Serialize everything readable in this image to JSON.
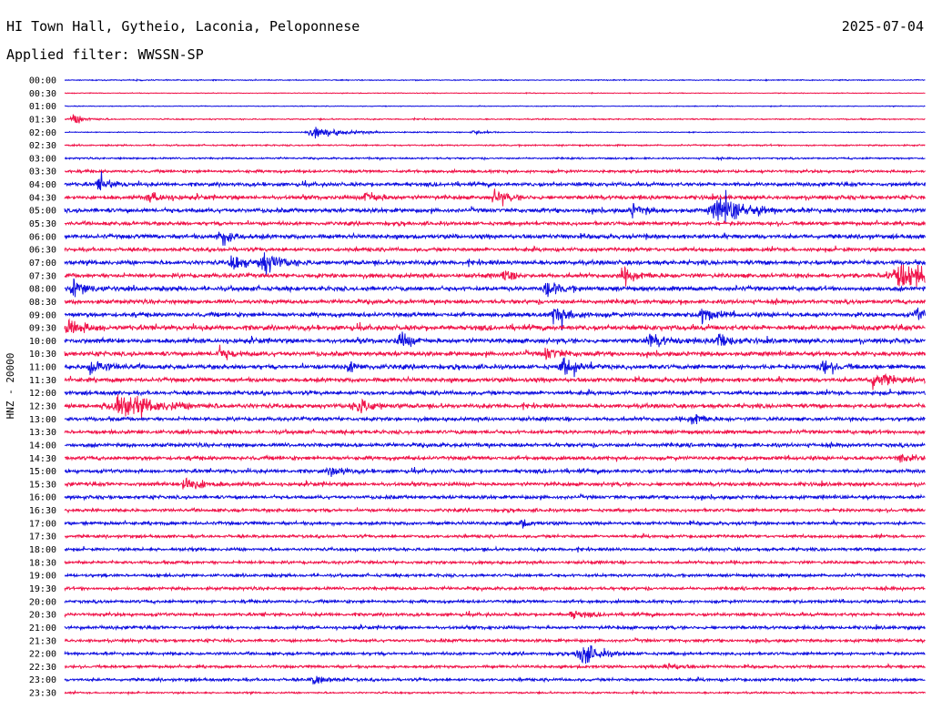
{
  "header": {
    "station": "HI Town Hall, Gytheio, Laconia, Peloponnese",
    "date": "2025-07-04",
    "filter_label": "Applied filter: WWSSN-SP"
  },
  "chart_data": {
    "type": "line",
    "title": "HI Town Hall, Gytheio, Laconia, Peloponnese",
    "ylabel": "HNZ - 20000",
    "colors": {
      "even_rows": "#1010e0",
      "odd_rows": "#f0144a"
    },
    "row_labels": [
      "00:00",
      "00:30",
      "01:00",
      "01:30",
      "02:00",
      "02:30",
      "03:00",
      "03:30",
      "04:00",
      "04:30",
      "05:00",
      "05:30",
      "06:00",
      "06:30",
      "07:00",
      "07:30",
      "08:00",
      "08:30",
      "09:00",
      "09:30",
      "10:00",
      "10:30",
      "11:00",
      "11:30",
      "12:00",
      "12:30",
      "13:00",
      "13:30",
      "14:00",
      "14:30",
      "15:00",
      "15:30",
      "16:00",
      "16:30",
      "17:00",
      "17:30",
      "18:00",
      "18:30",
      "19:00",
      "19:30",
      "20:00",
      "20:30",
      "21:00",
      "21:30",
      "22:00",
      "22:30",
      "23:00",
      "23:30"
    ],
    "noise_level": [
      0.08,
      0.06,
      0.06,
      0.1,
      0.07,
      0.12,
      0.14,
      0.22,
      0.3,
      0.32,
      0.34,
      0.3,
      0.34,
      0.3,
      0.34,
      0.34,
      0.36,
      0.32,
      0.34,
      0.4,
      0.38,
      0.36,
      0.36,
      0.34,
      0.32,
      0.32,
      0.3,
      0.3,
      0.3,
      0.3,
      0.3,
      0.3,
      0.28,
      0.26,
      0.26,
      0.24,
      0.24,
      0.24,
      0.24,
      0.24,
      0.24,
      0.26,
      0.26,
      0.24,
      0.24,
      0.22,
      0.24,
      0.14
    ],
    "events": [
      {
        "row": 3,
        "t": 0.01,
        "amp": 0.9,
        "dur": 0.015
      },
      {
        "row": 4,
        "t": 0.29,
        "amp": 0.9,
        "dur": 0.04
      },
      {
        "row": 4,
        "t": 0.475,
        "amp": 0.5,
        "dur": 0.015
      },
      {
        "row": 8,
        "t": 0.04,
        "amp": 1.2,
        "dur": 0.015
      },
      {
        "row": 9,
        "t": 0.1,
        "amp": 1.0,
        "dur": 0.015
      },
      {
        "row": 9,
        "t": 0.35,
        "amp": 1.2,
        "dur": 0.015
      },
      {
        "row": 9,
        "t": 0.5,
        "amp": 1.3,
        "dur": 0.015
      },
      {
        "row": 10,
        "t": 0.66,
        "amp": 1.0,
        "dur": 0.015
      },
      {
        "row": 10,
        "t": 0.76,
        "amp": 2.3,
        "dur": 0.035
      },
      {
        "row": 12,
        "t": 0.18,
        "amp": 1.5,
        "dur": 0.015
      },
      {
        "row": 14,
        "t": 0.195,
        "amp": 1.4,
        "dur": 0.015
      },
      {
        "row": 14,
        "t": 0.23,
        "amp": 1.9,
        "dur": 0.02
      },
      {
        "row": 15,
        "t": 0.51,
        "amp": 0.8,
        "dur": 0.015
      },
      {
        "row": 15,
        "t": 0.65,
        "amp": 0.9,
        "dur": 0.025
      },
      {
        "row": 15,
        "t": 0.97,
        "amp": 2.0,
        "dur": 0.06
      },
      {
        "row": 16,
        "t": 0.01,
        "amp": 1.3,
        "dur": 0.02
      },
      {
        "row": 16,
        "t": 0.56,
        "amp": 1.4,
        "dur": 0.015
      },
      {
        "row": 18,
        "t": 0.57,
        "amp": 1.5,
        "dur": 0.02
      },
      {
        "row": 18,
        "t": 0.74,
        "amp": 1.4,
        "dur": 0.015
      },
      {
        "row": 18,
        "t": 0.99,
        "amp": 1.0,
        "dur": 0.015
      },
      {
        "row": 19,
        "t": 0.005,
        "amp": 1.6,
        "dur": 0.02
      },
      {
        "row": 20,
        "t": 0.39,
        "amp": 1.4,
        "dur": 0.015
      },
      {
        "row": 20,
        "t": 0.68,
        "amp": 1.2,
        "dur": 0.02
      },
      {
        "row": 20,
        "t": 0.76,
        "amp": 1.5,
        "dur": 0.015
      },
      {
        "row": 21,
        "t": 0.18,
        "amp": 1.0,
        "dur": 0.015
      },
      {
        "row": 21,
        "t": 0.56,
        "amp": 1.1,
        "dur": 0.015
      },
      {
        "row": 22,
        "t": 0.03,
        "amp": 1.3,
        "dur": 0.02
      },
      {
        "row": 22,
        "t": 0.33,
        "amp": 0.9,
        "dur": 0.015
      },
      {
        "row": 22,
        "t": 0.58,
        "amp": 1.4,
        "dur": 0.02
      },
      {
        "row": 22,
        "t": 0.88,
        "amp": 1.1,
        "dur": 0.015
      },
      {
        "row": 23,
        "t": 0.94,
        "amp": 1.5,
        "dur": 0.02
      },
      {
        "row": 25,
        "t": 0.06,
        "amp": 2.0,
        "dur": 0.05
      },
      {
        "row": 25,
        "t": 0.34,
        "amp": 1.4,
        "dur": 0.02
      },
      {
        "row": 26,
        "t": 0.73,
        "amp": 1.1,
        "dur": 0.015
      },
      {
        "row": 29,
        "t": 0.97,
        "amp": 0.8,
        "dur": 0.015
      },
      {
        "row": 30,
        "t": 0.31,
        "amp": 0.9,
        "dur": 0.015
      },
      {
        "row": 31,
        "t": 0.14,
        "amp": 1.4,
        "dur": 0.02
      },
      {
        "row": 34,
        "t": 0.53,
        "amp": 0.7,
        "dur": 0.01
      },
      {
        "row": 41,
        "t": 0.59,
        "amp": 0.7,
        "dur": 0.015
      },
      {
        "row": 44,
        "t": 0.6,
        "amp": 2.3,
        "dur": 0.02
      },
      {
        "row": 45,
        "t": 0.7,
        "amp": 0.8,
        "dur": 0.015
      },
      {
        "row": 46,
        "t": 0.29,
        "amp": 0.9,
        "dur": 0.015
      }
    ]
  }
}
